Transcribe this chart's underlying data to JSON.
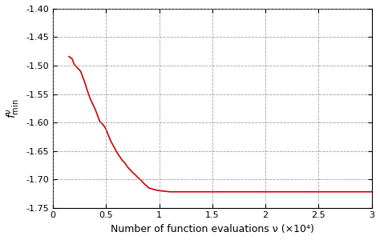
{
  "title": "",
  "xlabel": "Number of function evaluations ν (×10⁴)",
  "ylabel": "$f_{\\mathrm{min}}^{\\nu}$",
  "xlim": [
    0,
    3
  ],
  "ylim": [
    -1.75,
    -1.4
  ],
  "xticks": [
    0,
    0.5,
    1.0,
    1.5,
    2.0,
    2.5,
    3.0
  ],
  "yticks": [
    -1.75,
    -1.7,
    -1.65,
    -1.6,
    -1.55,
    -1.5,
    -1.45,
    -1.4
  ],
  "line_color": "#cc0000",
  "line_width": 1.2,
  "grid_color": "#888888",
  "grid_style": "--",
  "background_color": "#ffffff",
  "x_data": [
    0.15,
    0.18,
    0.2,
    0.22,
    0.24,
    0.26,
    0.28,
    0.3,
    0.32,
    0.35,
    0.38,
    0.4,
    0.42,
    0.44,
    0.46,
    0.48,
    0.5,
    0.52,
    0.55,
    0.58,
    0.6,
    0.62,
    0.65,
    0.68,
    0.7,
    0.72,
    0.75,
    0.78,
    0.8,
    0.83,
    0.86,
    0.9,
    0.95,
    1.0,
    1.05,
    1.1,
    1.5,
    2.0,
    2.5,
    3.0
  ],
  "y_data": [
    -1.484,
    -1.488,
    -1.498,
    -1.502,
    -1.506,
    -1.51,
    -1.52,
    -1.53,
    -1.542,
    -1.558,
    -1.57,
    -1.578,
    -1.588,
    -1.598,
    -1.602,
    -1.606,
    -1.612,
    -1.622,
    -1.635,
    -1.645,
    -1.652,
    -1.658,
    -1.666,
    -1.672,
    -1.678,
    -1.682,
    -1.688,
    -1.693,
    -1.697,
    -1.702,
    -1.708,
    -1.715,
    -1.718,
    -1.72,
    -1.721,
    -1.722,
    -1.722,
    -1.722,
    -1.722,
    -1.722
  ]
}
